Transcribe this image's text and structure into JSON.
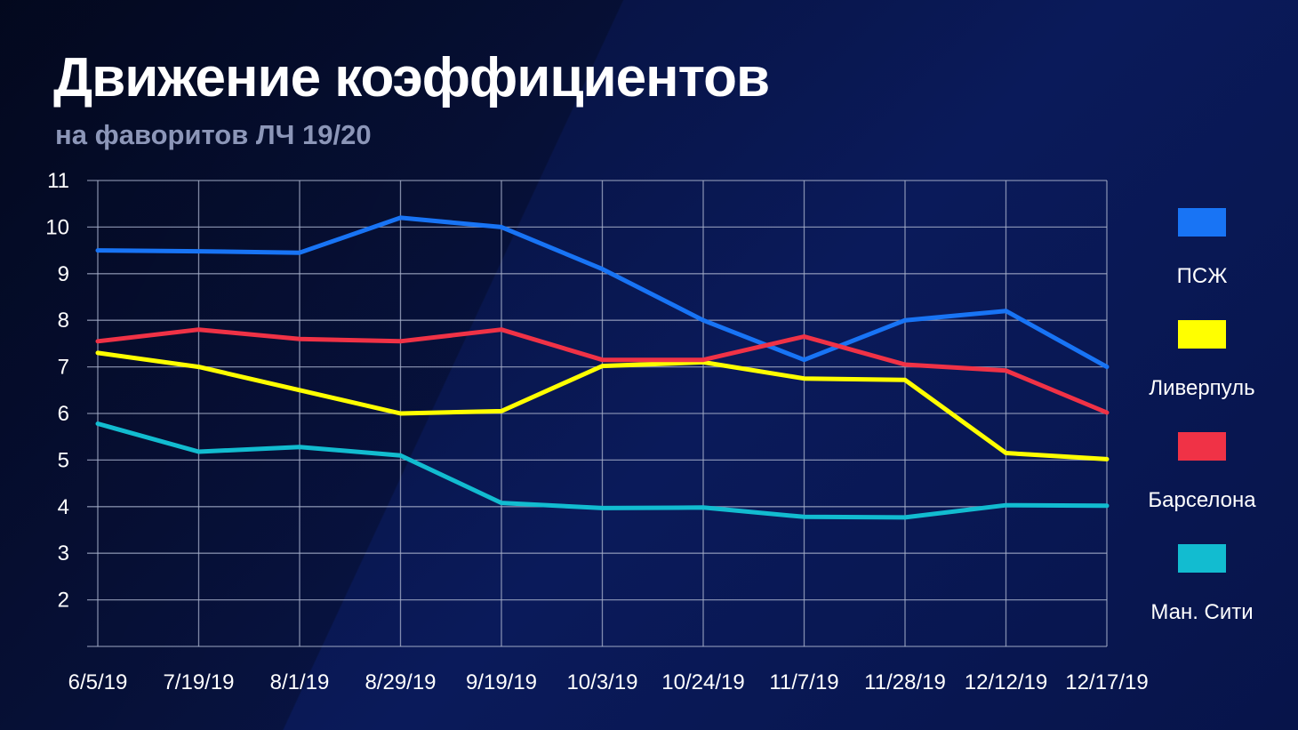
{
  "header": {
    "title": "Движение коэффициентов",
    "subtitle": "на фаворитов ЛЧ 19/20"
  },
  "chart_data": {
    "type": "line",
    "categories": [
      "6/5/19",
      "7/19/19",
      "8/1/19",
      "8/29/19",
      "9/19/19",
      "10/3/19",
      "10/24/19",
      "11/7/19",
      "11/28/19",
      "12/12/19",
      "12/17/19"
    ],
    "ylim": [
      1,
      11
    ],
    "yticks": [
      2,
      3,
      4,
      5,
      6,
      7,
      8,
      9,
      10,
      11
    ],
    "grid": true,
    "legend_position": "right",
    "series": [
      {
        "name": "ПСЖ",
        "color": "#1874f5",
        "values": [
          9.5,
          9.48,
          9.45,
          10.2,
          10.0,
          9.1,
          8.0,
          7.15,
          8.0,
          8.2,
          7.0
        ]
      },
      {
        "name": "Ливерпуль",
        "color": "#ffff00",
        "values": [
          7.3,
          7.0,
          6.5,
          6.0,
          6.05,
          7.02,
          7.1,
          6.75,
          6.72,
          5.15,
          5.02
        ]
      },
      {
        "name": "Барселона",
        "color": "#f03246",
        "values": [
          7.55,
          7.8,
          7.6,
          7.55,
          7.8,
          7.15,
          7.15,
          7.65,
          7.05,
          6.92,
          6.02
        ]
      },
      {
        "name": "Ман. Сити",
        "color": "#12bcd0",
        "values": [
          5.78,
          5.18,
          5.28,
          5.1,
          4.08,
          3.97,
          3.98,
          3.78,
          3.77,
          4.03,
          4.02
        ]
      }
    ]
  }
}
